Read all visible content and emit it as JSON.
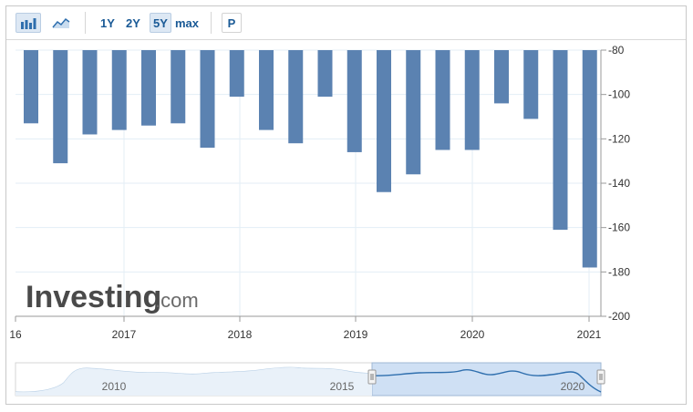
{
  "toolbar": {
    "bar_icon": "bar-chart-icon",
    "area_icon": "area-chart-icon",
    "ranges": [
      "1Y",
      "2Y",
      "5Y",
      "max"
    ],
    "active_range": "5Y",
    "p_label": "P"
  },
  "watermark": {
    "text": "Investing",
    "suffix": ".com"
  },
  "colors": {
    "bar": "#5b82b1",
    "navigator_fill": "#cfe0f4",
    "navigator_line": "#2f6fae",
    "grid": "#e3eef6"
  },
  "chart_data": {
    "type": "bar",
    "ylim": [
      -200,
      -80
    ],
    "yticks": [
      -80,
      -100,
      -120,
      -140,
      -160,
      -180,
      -200
    ],
    "y_axis_position": "right",
    "x_tick_labels": [
      "16",
      "2017",
      "2018",
      "2019",
      "2020",
      "2021"
    ],
    "values": [
      -113,
      -131,
      -118,
      -116,
      -114,
      -113,
      -124,
      -101,
      -116,
      -122,
      -101,
      -126,
      -144,
      -136,
      -125,
      -125,
      -104,
      -111,
      -161,
      -178
    ],
    "grid": true
  },
  "navigator": {
    "labels": [
      "2010",
      "2015",
      "2020"
    ]
  }
}
